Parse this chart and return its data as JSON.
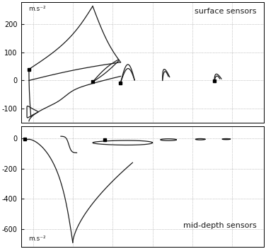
{
  "top_panel": {
    "ylabel": "m.s⁻²",
    "label": "surface sensors",
    "ylim": [
      -150,
      280
    ],
    "yticks": [
      -100,
      0,
      100,
      200
    ],
    "xlim": [
      -0.3,
      5.8
    ],
    "grid_xticks": [
      0,
      1,
      2,
      3,
      4,
      5
    ]
  },
  "bottom_panel": {
    "ylabel": "m.s⁻²",
    "label": "mid-depth sensors",
    "ylim": [
      -720,
      80
    ],
    "yticks": [
      -600,
      -400,
      -200,
      0
    ],
    "xlim": [
      -0.3,
      5.8
    ],
    "grid_xticks": [
      0,
      1,
      2,
      3,
      4,
      5
    ]
  },
  "line_color": "#1a1a1a",
  "grid_color": "#999999",
  "lw": 0.9
}
